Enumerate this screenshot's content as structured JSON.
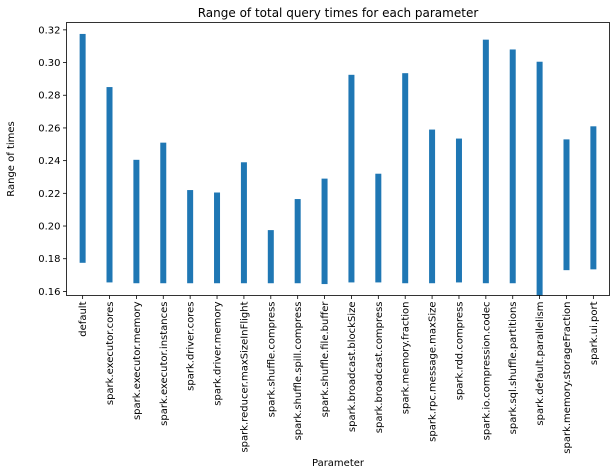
{
  "chart_data": {
    "type": "bar",
    "title": "Range of total query times for each parameter",
    "xlabel": "Parameter",
    "ylabel": "Range of times",
    "ylim": [
      0.1575,
      0.3245
    ],
    "yticks": [
      "0.16",
      "0.18",
      "0.20",
      "0.22",
      "0.24",
      "0.26",
      "0.28",
      "0.30",
      "0.32"
    ],
    "grid": false,
    "bar_color": "#1f77b4",
    "categories": [
      "default",
      "spark.executor.cores",
      "spark.executor.memory",
      "spark.executor.instances",
      "spark.driver.cores",
      "spark.driver.memory",
      "spark.reducer.maxSizeInFlight",
      "spark.shuffle.compress",
      "spark.shuffle.spill.compress",
      "spark.shuffle.file.buffer",
      "spark.broadcast.blockSize",
      "spark.broadcast.compress",
      "spark.memory.fraction",
      "spark.rpc.message.maxSize",
      "spark.rdd.compress",
      "spark.io.compression.codec",
      "spark.sql.shuffle.partitions",
      "spark.default.parallelism",
      "spark.memory.storageFraction",
      "spark.ui.port"
    ],
    "series": [
      {
        "low": [
          0.1775,
          0.1655,
          0.165,
          0.165,
          0.165,
          0.165,
          0.165,
          0.165,
          0.165,
          0.1645,
          0.1655,
          0.1655,
          0.165,
          0.165,
          0.1655,
          0.165,
          0.165,
          0.1575,
          0.173,
          0.1735
        ],
        "high": [
          0.3175,
          0.285,
          0.2405,
          0.251,
          0.222,
          0.2205,
          0.239,
          0.1975,
          0.2165,
          0.229,
          0.2925,
          0.232,
          0.2935,
          0.259,
          0.2535,
          0.314,
          0.308,
          0.3005,
          0.253,
          0.261
        ]
      }
    ]
  }
}
